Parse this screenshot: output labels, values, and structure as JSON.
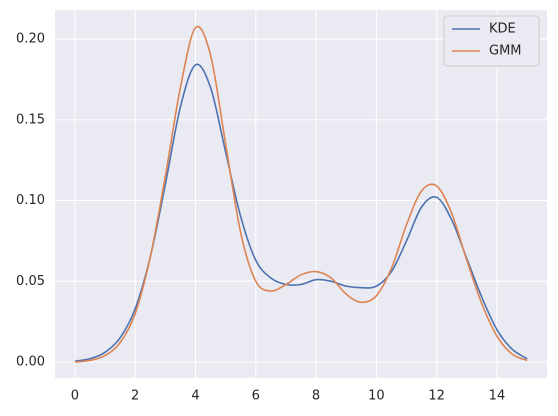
{
  "chart_data": {
    "type": "line",
    "x": [
      0,
      0.5,
      1,
      1.5,
      2,
      2.5,
      3,
      3.5,
      4,
      4.5,
      5,
      5.5,
      6,
      6.5,
      7,
      7.5,
      8,
      8.5,
      9,
      9.5,
      10,
      10.5,
      11,
      11.5,
      12,
      12.5,
      13,
      13.5,
      14,
      14.5,
      15
    ],
    "series": [
      {
        "name": "KDE",
        "color": "#4c72b0",
        "values": [
          0.0005,
          0.002,
          0.006,
          0.015,
          0.033,
          0.065,
          0.11,
          0.158,
          0.184,
          0.17,
          0.13,
          0.09,
          0.063,
          0.052,
          0.048,
          0.048,
          0.051,
          0.05,
          0.047,
          0.046,
          0.047,
          0.056,
          0.075,
          0.096,
          0.102,
          0.088,
          0.064,
          0.04,
          0.02,
          0.008,
          0.002
        ]
      },
      {
        "name": "GMM",
        "color": "#dd8452",
        "values": [
          0.0,
          0.001,
          0.004,
          0.012,
          0.03,
          0.065,
          0.115,
          0.17,
          0.207,
          0.19,
          0.135,
          0.08,
          0.05,
          0.044,
          0.048,
          0.054,
          0.056,
          0.052,
          0.042,
          0.037,
          0.041,
          0.058,
          0.085,
          0.106,
          0.109,
          0.092,
          0.063,
          0.036,
          0.016,
          0.005,
          0.001
        ]
      }
    ],
    "xlim": [
      -0.66,
      15.66
    ],
    "ylim": [
      -0.0099,
      0.218
    ],
    "xticks": [
      0,
      2,
      4,
      6,
      8,
      10,
      12,
      14
    ],
    "yticks": [
      {
        "value": 0,
        "label": "0.00"
      },
      {
        "value": 0.05,
        "label": "0.05"
      },
      {
        "value": 0.1,
        "label": "0.10"
      },
      {
        "value": 0.15,
        "label": "0.15"
      },
      {
        "value": 0.2,
        "label": "0.20"
      }
    ],
    "grid": true,
    "legend": "upper right"
  }
}
